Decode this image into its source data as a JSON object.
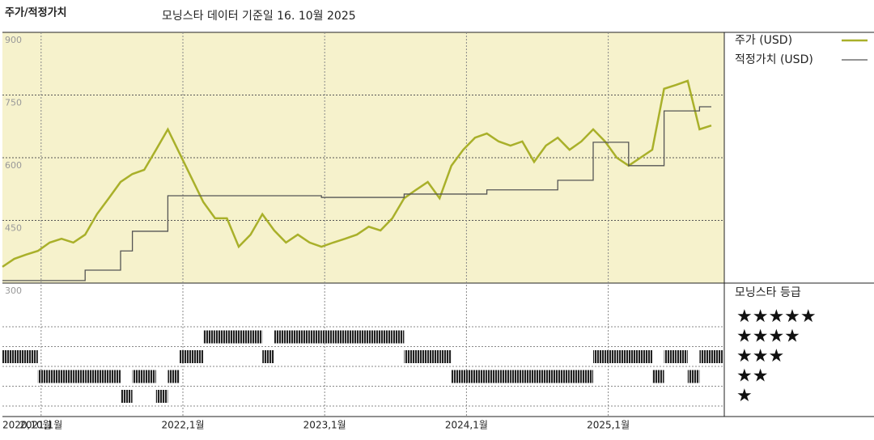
{
  "chart_data": {
    "type": "line",
    "title": "주가/적정가치",
    "subtitle": "모닝스타 데이터 기준일 16. 10월 2025",
    "x": [
      "2020-10",
      "2020-11",
      "2020-12",
      "2021-01",
      "2021-02",
      "2021-03",
      "2021-04",
      "2021-05",
      "2021-06",
      "2021-07",
      "2021-08",
      "2021-09",
      "2021-10",
      "2021-11",
      "2021-12",
      "2022-01",
      "2022-02",
      "2022-03",
      "2022-04",
      "2022-05",
      "2022-06",
      "2022-07",
      "2022-08",
      "2022-09",
      "2022-10",
      "2022-11",
      "2022-12",
      "2023-01",
      "2023-02",
      "2023-03",
      "2023-04",
      "2023-05",
      "2023-06",
      "2023-07",
      "2023-08",
      "2023-09",
      "2023-10",
      "2023-11",
      "2023-12",
      "2024-01",
      "2024-02",
      "2024-03",
      "2024-04",
      "2024-05",
      "2024-06",
      "2024-07",
      "2024-08",
      "2024-09",
      "2024-10",
      "2024-11",
      "2024-12",
      "2025-01",
      "2025-02",
      "2025-03",
      "2025-04",
      "2025-05",
      "2025-06",
      "2025-07",
      "2025-08",
      "2025-09",
      "2025-10"
    ],
    "series": [
      {
        "name": "주가 (USD)",
        "color": "#a9b02a",
        "values": [
          339,
          358,
          368,
          377,
          397,
          406,
          397,
          416,
          465,
          503,
          542,
          561,
          571,
          619,
          668,
          610,
          552,
          494,
          455,
          455,
          387,
          416,
          465,
          426,
          397,
          416,
          397,
          387,
          397,
          406,
          416,
          435,
          426,
          455,
          503,
          523,
          542,
          503,
          581,
          619,
          648,
          658,
          639,
          629,
          639,
          590,
          629,
          648,
          619,
          639,
          668,
          639,
          600,
          581,
          600,
          619,
          765,
          774,
          784,
          668,
          677
        ]
      },
      {
        "name": "적정가치 (USD)",
        "color": "#555555",
        "step": true,
        "values": [
          306,
          306,
          306,
          306,
          306,
          306,
          306,
          331,
          331,
          331,
          377,
          424,
          424,
          424,
          509,
          509,
          509,
          509,
          509,
          509,
          509,
          509,
          509,
          509,
          509,
          509,
          509,
          505,
          505,
          505,
          505,
          505,
          505,
          505,
          513,
          513,
          513,
          513,
          513,
          513,
          513,
          523,
          523,
          523,
          523,
          523,
          523,
          546,
          546,
          546,
          637,
          637,
          637,
          581,
          581,
          581,
          712,
          712,
          712,
          722,
          722
        ]
      }
    ],
    "ylim": [
      300,
      900
    ],
    "yticks": [
      300,
      450,
      600,
      750,
      900
    ],
    "grid": true,
    "xticks": [
      {
        "value": "2020-10",
        "label": "2020,10월"
      },
      {
        "value": "2021-01",
        "label": "2021,1월"
      },
      {
        "value": "2022-01",
        "label": "2022,1월"
      },
      {
        "value": "2023-01",
        "label": "2023,1월"
      },
      {
        "value": "2024-01",
        "label": "2024,1월"
      },
      {
        "value": "2025-01",
        "label": "2025,1월"
      }
    ],
    "rating_title": "모닝스타 등급",
    "rating_labels": [
      "★",
      "★★",
      "★★★",
      "★★★★",
      "★★★★★"
    ],
    "ratings": [
      3,
      3,
      3,
      2,
      2,
      2,
      2,
      2,
      2,
      2,
      1,
      2,
      2,
      1,
      2,
      3,
      3,
      4,
      4,
      4,
      4,
      4,
      3,
      4,
      4,
      4,
      4,
      4,
      4,
      4,
      4,
      4,
      4,
      4,
      3,
      3,
      3,
      3,
      2,
      2,
      2,
      2,
      2,
      2,
      2,
      2,
      2,
      2,
      2,
      2,
      3,
      3,
      3,
      3,
      3,
      2,
      3,
      3,
      2,
      3,
      3
    ]
  }
}
